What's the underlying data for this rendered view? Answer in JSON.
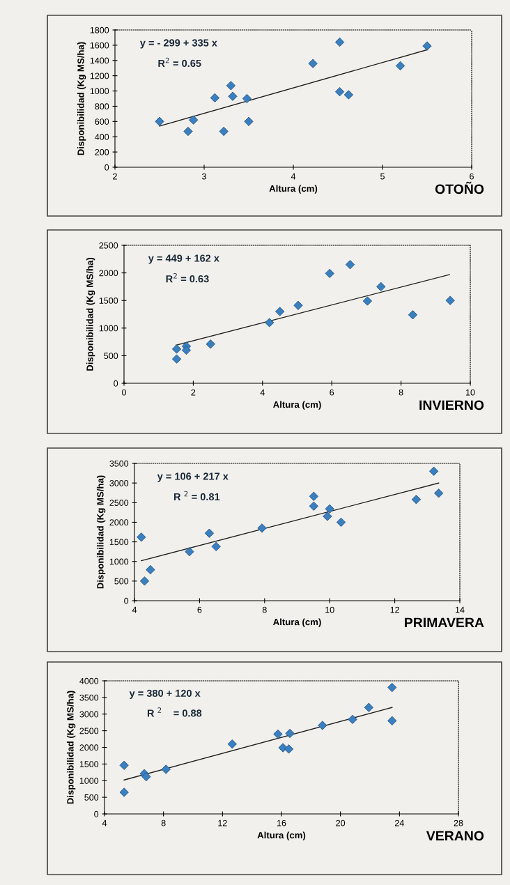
{
  "chart_data": [
    {
      "type": "scatter",
      "title": "OTOÑO",
      "xlabel": "Altura (cm)",
      "ylabel": "Disponibilidad (Kg MS/ha)",
      "xlim": [
        2,
        6
      ],
      "xticks": [
        2,
        3,
        4,
        5,
        6
      ],
      "ylim": [
        0,
        1800
      ],
      "yticks": [
        0,
        200,
        400,
        600,
        800,
        1000,
        1200,
        1400,
        1600,
        1800
      ],
      "grid": false,
      "legend": false,
      "annotations": [
        "y = - 299 + 335 x",
        "R$^{2}$ = 0.65"
      ],
      "series": [
        {
          "marker": "diamond",
          "color": "#3a7fc0",
          "x": [
            2.5,
            2.82,
            2.88,
            3.12,
            3.22,
            3.3,
            3.32,
            3.48,
            3.5,
            4.22,
            4.52,
            4.52,
            4.62,
            5.2,
            5.5
          ],
          "values": [
            600,
            470,
            620,
            910,
            470,
            1070,
            930,
            900,
            600,
            1360,
            1640,
            990,
            950,
            1330,
            1590
          ]
        },
        {
          "type": "line",
          "color": "#222222",
          "x": [
            2.5,
            5.5
          ],
          "values": [
            540,
            1540
          ]
        }
      ]
    },
    {
      "type": "scatter",
      "title": "INVIERNO",
      "xlabel": "Altura (cm)",
      "ylabel": "Disponibilidad (Kg MS/ha)",
      "xlim": [
        0,
        10
      ],
      "xticks": [
        0,
        2,
        4,
        6,
        8,
        10
      ],
      "ylim": [
        0,
        2500
      ],
      "yticks": [
        0,
        500,
        1000,
        1500,
        2000,
        2500
      ],
      "grid": false,
      "legend": false,
      "annotations": [
        "y = 449 + 162 x",
        "R$^{2}$ = 0.63"
      ],
      "series": [
        {
          "marker": "diamond",
          "color": "#3a7fc0",
          "x": [
            1.52,
            1.52,
            1.8,
            1.8,
            2.5,
            4.2,
            4.5,
            5.03,
            5.94,
            6.53,
            7.03,
            7.42,
            8.34,
            9.42
          ],
          "values": [
            620,
            440,
            670,
            600,
            710,
            1100,
            1300,
            1410,
            1990,
            2150,
            1490,
            1750,
            1240,
            1500
          ]
        },
        {
          "type": "line",
          "color": "#222222",
          "x": [
            1.5,
            9.4
          ],
          "values": [
            690,
            1970
          ]
        }
      ]
    },
    {
      "type": "scatter",
      "title": "PRIMAVERA",
      "xlabel": "Altura (cm)",
      "ylabel": "Disponibilidad (Kg MS/ha)",
      "xlim": [
        4,
        14
      ],
      "xticks": [
        4,
        6,
        8,
        10,
        12,
        14
      ],
      "ylim": [
        0,
        3500
      ],
      "yticks": [
        0,
        500,
        1000,
        1500,
        2000,
        2500,
        3000,
        3500
      ],
      "grid": false,
      "legend": false,
      "annotations": [
        "y = 106 + 217 x",
        "R $^{2}$ = 0.81"
      ],
      "series": [
        {
          "marker": "diamond",
          "color": "#3a7fc0",
          "x": [
            4.21,
            4.31,
            4.49,
            5.69,
            6.3,
            6.51,
            7.92,
            9.51,
            9.51,
            9.93,
            10.0,
            10.35,
            12.66,
            13.2,
            13.35
          ],
          "values": [
            1620,
            500,
            790,
            1250,
            1720,
            1380,
            1850,
            2660,
            2410,
            2150,
            2340,
            2000,
            2580,
            3300,
            2740
          ]
        },
        {
          "type": "line",
          "color": "#222222",
          "x": [
            4.21,
            13.35
          ],
          "values": [
            1020,
            3000
          ]
        }
      ]
    },
    {
      "type": "scatter",
      "title": "VERANO",
      "xlabel": "Altura (cm)",
      "ylabel": "Disponibilidad (Kg MS/ha)",
      "xlim": [
        4,
        28
      ],
      "xticks": [
        4,
        8,
        12,
        16,
        20,
        24,
        28
      ],
      "ylim": [
        0,
        4000
      ],
      "yticks": [
        0,
        500,
        1000,
        1500,
        2000,
        2500,
        3000,
        3500,
        4000
      ],
      "grid": false,
      "legend": false,
      "annotations": [
        "y = 380 + 120 x",
        "R $^{2}$    = 0.88"
      ],
      "series": [
        {
          "marker": "diamond",
          "color": "#3a7fc0",
          "x": [
            5.33,
            5.33,
            6.7,
            6.83,
            8.17,
            12.66,
            15.76,
            16.1,
            16.5,
            16.57,
            18.78,
            20.82,
            21.92,
            23.5,
            23.5
          ],
          "values": [
            1460,
            650,
            1210,
            1120,
            1340,
            2100,
            2400,
            1990,
            1950,
            2420,
            2660,
            2840,
            3200,
            3800,
            2800
          ]
        },
        {
          "type": "line",
          "color": "#222222",
          "x": [
            5.33,
            23.5
          ],
          "values": [
            1020,
            3200
          ]
        }
      ]
    }
  ]
}
